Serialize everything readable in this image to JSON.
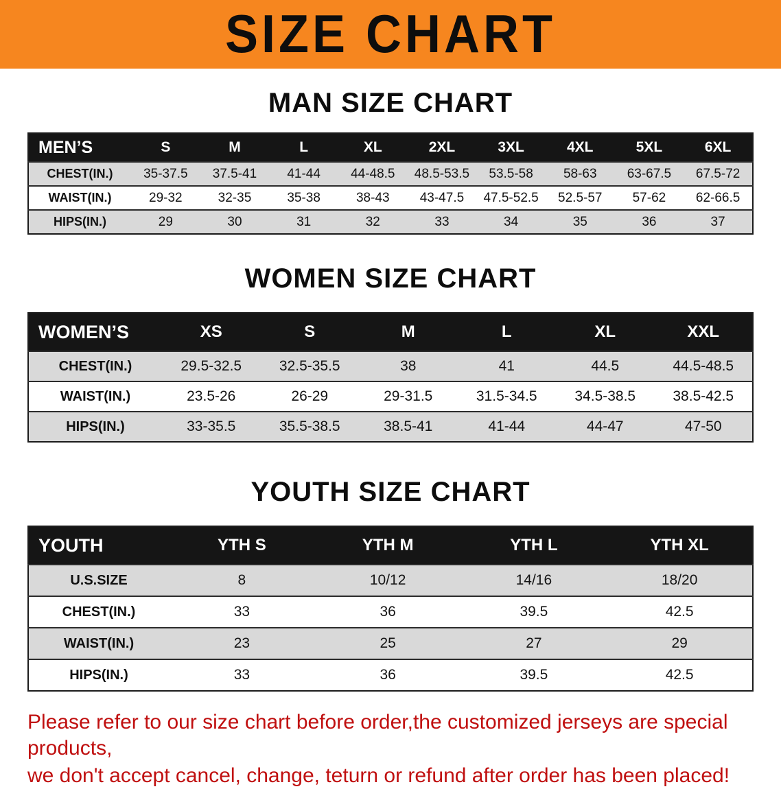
{
  "banner": {
    "title": "SIZE CHART",
    "bg_color": "#f6861f",
    "text_color": "#0d0d0d"
  },
  "sections": {
    "men": {
      "heading": "MAN SIZE CHART"
    },
    "women": {
      "heading": "WOMEN SIZE CHART"
    },
    "youth": {
      "heading": "YOUTH SIZE CHART"
    }
  },
  "tables": {
    "men": {
      "corner": "MEN’S",
      "columns": [
        "S",
        "M",
        "L",
        "XL",
        "2XL",
        "3XL",
        "4XL",
        "5XL",
        "6XL"
      ],
      "rows": [
        {
          "label": "CHEST(IN.)",
          "values": [
            "35-37.5",
            "37.5-41",
            "41-44",
            "44-48.5",
            "48.5-53.5",
            "53.5-58",
            "58-63",
            "63-67.5",
            "67.5-72"
          ]
        },
        {
          "label": "WAIST(IN.)",
          "values": [
            "29-32",
            "32-35",
            "35-38",
            "38-43",
            "43-47.5",
            "47.5-52.5",
            "52.5-57",
            "57-62",
            "62-66.5"
          ]
        },
        {
          "label": "HIPS(IN.)",
          "values": [
            "29",
            "30",
            "31",
            "32",
            "33",
            "34",
            "35",
            "36",
            "37"
          ]
        }
      ]
    },
    "women": {
      "corner": "WOMEN’S",
      "columns": [
        "XS",
        "S",
        "M",
        "L",
        "XL",
        "XXL"
      ],
      "rows": [
        {
          "label": "CHEST(IN.)",
          "values": [
            "29.5-32.5",
            "32.5-35.5",
            "38",
            "41",
            "44.5",
            "44.5-48.5"
          ]
        },
        {
          "label": "WAIST(IN.)",
          "values": [
            "23.5-26",
            "26-29",
            "29-31.5",
            "31.5-34.5",
            "34.5-38.5",
            "38.5-42.5"
          ]
        },
        {
          "label": "HIPS(IN.)",
          "values": [
            "33-35.5",
            "35.5-38.5",
            "38.5-41",
            "41-44",
            "44-47",
            "47-50"
          ]
        }
      ]
    },
    "youth": {
      "corner": "YOUTH",
      "columns": [
        "YTH S",
        "YTH M",
        "YTH L",
        "YTH XL"
      ],
      "rows": [
        {
          "label": "U.S.SIZE",
          "values": [
            "8",
            "10/12",
            "14/16",
            "18/20"
          ]
        },
        {
          "label": "CHEST(IN.)",
          "values": [
            "33",
            "36",
            "39.5",
            "42.5"
          ]
        },
        {
          "label": "WAIST(IN.)",
          "values": [
            "23",
            "25",
            "27",
            "29"
          ]
        },
        {
          "label": "HIPS(IN.)",
          "values": [
            "33",
            "36",
            "39.5",
            "42.5"
          ]
        }
      ]
    }
  },
  "footer": {
    "line1": "Please refer to our size chart before order,the customized jerseys are special products,",
    "line2": "we don't accept cancel, change, teturn or refund after order has been placed!",
    "text_color": "#c01010"
  },
  "colors": {
    "table_header_bg": "#151515",
    "row_stripe": "#d9d9d9",
    "banner_orange": "#f6861f"
  }
}
